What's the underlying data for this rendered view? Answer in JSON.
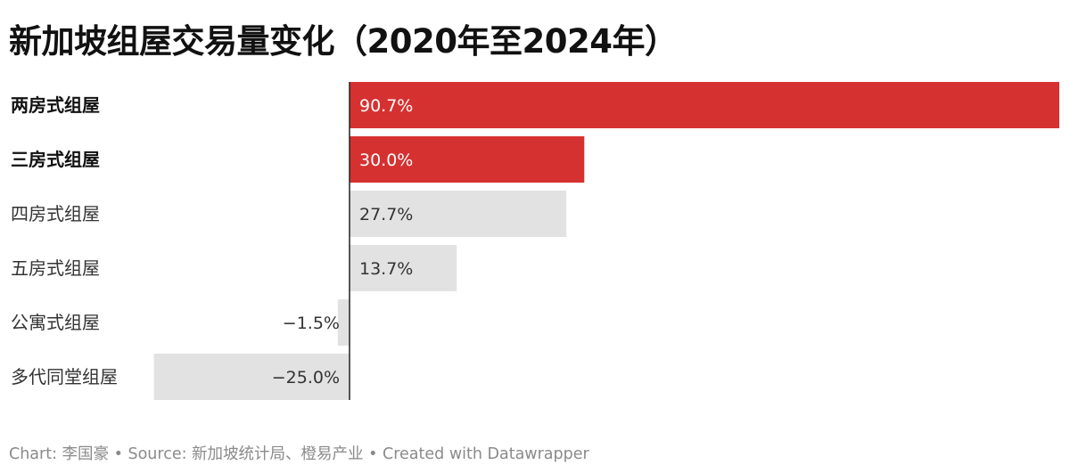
{
  "title": "新加坡组屋交易量变化（2020年至2024年）",
  "footer": "Chart: 李国豪 • Source: 新加坡统计局、橙易产业 • Created with Datawrapper",
  "colors": {
    "highlight": "#d63131",
    "neutral": "#e2e2e2",
    "axis": "#222222",
    "label_on_highlight": "#ffffff",
    "label_on_neutral": "#333333"
  },
  "chart_data": {
    "type": "bar",
    "orientation": "horizontal",
    "categories": [
      "两房式组屋",
      "三房式组屋",
      "四房式组屋",
      "五房式组屋",
      "公寓式组屋",
      "多代同堂组屋"
    ],
    "values": [
      90.7,
      30.0,
      27.7,
      13.7,
      -1.5,
      -25.0
    ],
    "value_labels": [
      "90.7%",
      "30.0%",
      "27.7%",
      "13.7%",
      "−1.5%",
      "−25.0%"
    ],
    "highlighted": [
      true,
      true,
      false,
      false,
      false,
      false
    ],
    "unit": "%",
    "xlim": [
      -25.0,
      90.7
    ],
    "grid": false
  }
}
